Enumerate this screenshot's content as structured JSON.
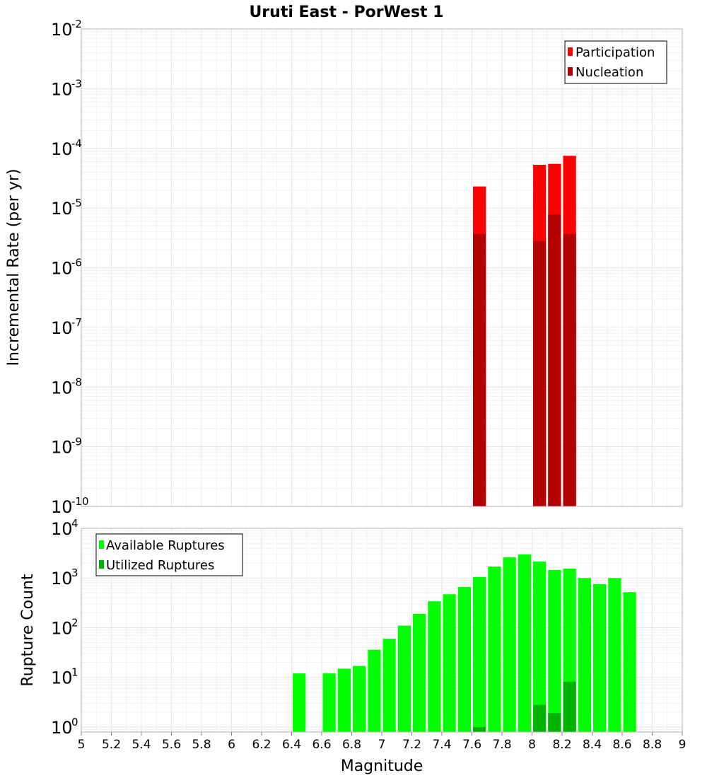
{
  "colors": {
    "participation": "#ff0000",
    "nucleation": "#b30000",
    "available": "#00ff00",
    "utilized": "#00b300"
  },
  "chart_data": [
    {
      "type": "bar",
      "title": "Uruti East - PorWest 1",
      "xlabel": "",
      "ylabel": "Incremental Rate (per yr)",
      "yscale": "log",
      "xlim": [
        5,
        9
      ],
      "ylim_exp": [
        -10,
        -2
      ],
      "ytick_base": "10",
      "ytick_exps": [
        "-10",
        "-9",
        "-8",
        "-7",
        "-6",
        "-5",
        "-4",
        "-3",
        "-2"
      ],
      "bin_width": 0.1,
      "legend_position": "top-right",
      "series": [
        {
          "name": "Participation",
          "color_key": "participation",
          "x": [
            7.65,
            8.05,
            8.15,
            8.25
          ],
          "values": [
            2.3e-05,
            5.3e-05,
            5.5e-05,
            7.5e-05
          ]
        },
        {
          "name": "Nucleation",
          "color_key": "nucleation",
          "x": [
            7.65,
            8.05,
            8.15,
            8.25
          ],
          "values": [
            3.7e-06,
            2.8e-06,
            7.8e-06,
            3.7e-06
          ]
        }
      ]
    },
    {
      "type": "bar",
      "xlabel": "Magnitude",
      "ylabel": "Rupture Count",
      "yscale": "log",
      "xlim": [
        5,
        9
      ],
      "ylim_exp": [
        -0.1,
        4
      ],
      "ytick_base": "10",
      "ytick_exps": [
        "0",
        "1",
        "2",
        "3",
        "4"
      ],
      "xticks": [
        "5",
        "5.2",
        "5.4",
        "5.6",
        "5.8",
        "6",
        "6.2",
        "6.4",
        "6.6",
        "6.8",
        "7",
        "7.2",
        "7.4",
        "7.6",
        "7.8",
        "8",
        "8.2",
        "8.4",
        "8.6",
        "8.8",
        "9"
      ],
      "bin_width": 0.1,
      "legend_position": "top-left",
      "series": [
        {
          "name": "Available Ruptures",
          "color_key": "available",
          "x": [
            6.45,
            6.65,
            6.75,
            6.85,
            6.95,
            7.05,
            7.15,
            7.25,
            7.35,
            7.45,
            7.55,
            7.65,
            7.75,
            7.85,
            7.95,
            8.05,
            8.15,
            8.25,
            8.35,
            8.45,
            8.55,
            8.65
          ],
          "values": [
            12,
            12,
            15,
            17,
            36,
            60,
            110,
            190,
            340,
            470,
            660,
            1050,
            1700,
            2600,
            3000,
            2150,
            1450,
            1550,
            1000,
            750,
            1000,
            520
          ]
        },
        {
          "name": "Utilized Ruptures",
          "color_key": "utilized",
          "x": [
            7.65,
            8.05,
            8.15,
            8.25
          ],
          "values": [
            1,
            2.8,
            1.9,
            8.2
          ]
        }
      ]
    }
  ]
}
